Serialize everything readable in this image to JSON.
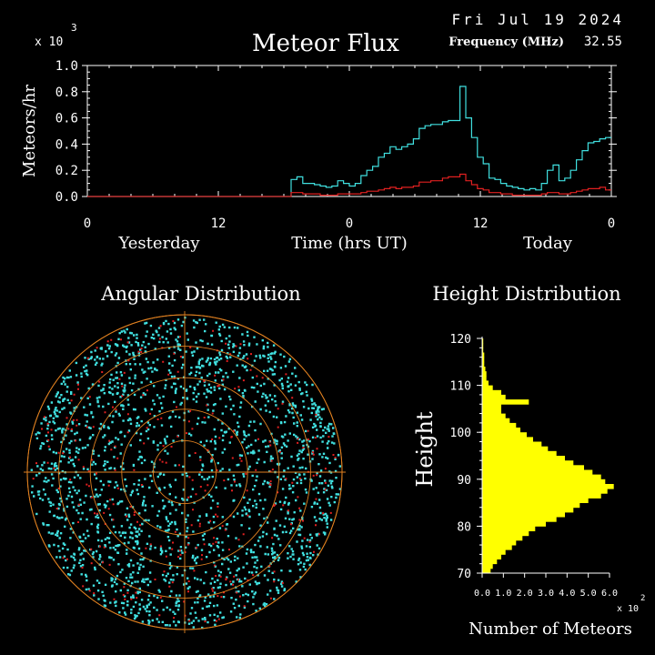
{
  "header": {
    "date": "Fri Jul 19 2024",
    "frequency_label": "Frequency (MHz)",
    "frequency_value": "32.55",
    "exponent_prefix": "x 10",
    "exponent_power": "3"
  },
  "chart_data": [
    {
      "type": "line",
      "title": "Meteor Flux",
      "xlabel": "Time (hrs UT)",
      "ylabel": "Meteors/hr",
      "ylim": [
        0,
        1.0
      ],
      "y_ticks": [
        "0.0",
        "0.2",
        "0.4",
        "0.6",
        "0.8",
        "1.0"
      ],
      "x_ticks": [
        "0",
        "12",
        "0",
        "12",
        "0"
      ],
      "day_labels": [
        "Yesterday",
        "Today"
      ],
      "colors": {
        "series1": "#40e0e0",
        "series2": "#e02020"
      },
      "series": [
        {
          "values": [
            0,
            0,
            0,
            0,
            0,
            0,
            0,
            0,
            0,
            0,
            0,
            0,
            0,
            0,
            0,
            0,
            0,
            0,
            0,
            0,
            0,
            0,
            0,
            0,
            0,
            0,
            0,
            0,
            0,
            0,
            0,
            0,
            0,
            0,
            0,
            0.13,
            0.15,
            0.1,
            0.1,
            0.09,
            0.08,
            0.07,
            0.08,
            0.12,
            0.1,
            0.08,
            0.1,
            0.16,
            0.2,
            0.23,
            0.3,
            0.33,
            0.38,
            0.36,
            0.38,
            0.4,
            0.44,
            0.52,
            0.54,
            0.55,
            0.55,
            0.57,
            0.58,
            0.58,
            0.84,
            0.6,
            0.45,
            0.3,
            0.25,
            0.14,
            0.13,
            0.1,
            0.08,
            0.07,
            0.06,
            0.05,
            0.06,
            0.05,
            0.1,
            0.2,
            0.24,
            0.12,
            0.14,
            0.2,
            0.28,
            0.35,
            0.41,
            0.42,
            0.44,
            0.45
          ]
        },
        {
          "values": [
            0,
            0,
            0,
            0,
            0,
            0,
            0,
            0,
            0,
            0,
            0,
            0,
            0,
            0,
            0,
            0,
            0,
            0,
            0,
            0,
            0,
            0,
            0,
            0,
            0,
            0,
            0,
            0,
            0,
            0,
            0,
            0,
            0,
            0,
            0,
            0.03,
            0.03,
            0.02,
            0.02,
            0.02,
            0.01,
            0.01,
            0.01,
            0.02,
            0.02,
            0.02,
            0.02,
            0.03,
            0.04,
            0.04,
            0.05,
            0.06,
            0.07,
            0.06,
            0.07,
            0.07,
            0.08,
            0.11,
            0.11,
            0.12,
            0.12,
            0.14,
            0.15,
            0.15,
            0.17,
            0.12,
            0.09,
            0.06,
            0.05,
            0.03,
            0.03,
            0.02,
            0.02,
            0.01,
            0.01,
            0.01,
            0.01,
            0.01,
            0.02,
            0.03,
            0.03,
            0.02,
            0.02,
            0.03,
            0.04,
            0.05,
            0.06,
            0.06,
            0.07,
            0.05
          ]
        }
      ]
    },
    {
      "type": "scatter",
      "title": "Angular Distribution",
      "colors": {
        "points": "#40e0e0",
        "points_alt": "#e02020",
        "rings": "#e08020"
      }
    },
    {
      "type": "bar",
      "title": "Height Distribution",
      "ylabel": "Height",
      "xlabel": "Number of Meteors",
      "ylim": [
        70,
        120
      ],
      "y_ticks": [
        "120",
        "110",
        "100",
        "90",
        "80",
        "70"
      ],
      "x_ticks": [
        "0.0",
        "1.0",
        "2.0",
        "3.0",
        "4.0",
        "5.0",
        "6.0"
      ],
      "x_exponent_prefix": "x 10",
      "x_exponent_power": "2",
      "xlim": [
        0,
        6.0
      ],
      "color": "#ffff00",
      "heights": [
        70,
        71,
        72,
        73,
        74,
        75,
        76,
        77,
        78,
        79,
        80,
        81,
        82,
        83,
        84,
        85,
        86,
        87,
        88,
        89,
        90,
        91,
        92,
        93,
        94,
        95,
        96,
        97,
        98,
        99,
        100,
        101,
        102,
        103,
        104,
        105,
        106,
        107,
        108,
        109,
        110,
        111,
        112,
        113,
        114,
        115,
        116,
        117,
        118,
        119
      ],
      "values": [
        0.4,
        0.5,
        0.7,
        0.9,
        1.1,
        1.4,
        1.6,
        1.9,
        2.2,
        2.5,
        3.0,
        3.5,
        3.9,
        4.3,
        4.6,
        5.0,
        5.6,
        5.9,
        6.2,
        5.8,
        5.6,
        5.2,
        4.8,
        4.3,
        3.9,
        3.5,
        3.1,
        2.8,
        2.4,
        2.1,
        1.8,
        1.6,
        1.3,
        1.1,
        0.9,
        0.9,
        2.2,
        1.1,
        0.9,
        0.5,
        0.3,
        0.2,
        0.2,
        0.15,
        0.1,
        0.1,
        0.1,
        0.05,
        0.05,
        0.05
      ]
    }
  ]
}
